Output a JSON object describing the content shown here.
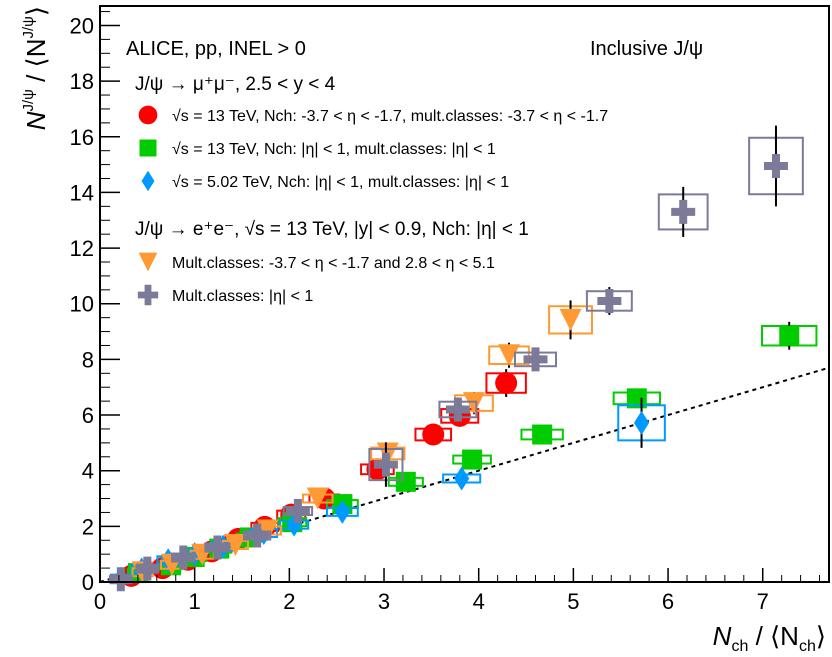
{
  "chart_data": {
    "type": "scatter",
    "xlim": [
      0,
      7.7
    ],
    "ylim": [
      0,
      20.7
    ],
    "xticks": [
      0,
      1,
      2,
      3,
      4,
      5,
      6,
      7
    ],
    "yticks": [
      0,
      2,
      4,
      6,
      8,
      10,
      12,
      14,
      16,
      18,
      20
    ],
    "xlabel": {
      "main": "N",
      "sub": "ch",
      "rest": " / ⟨N",
      "sub2": "ch",
      "close": "⟩"
    },
    "ylabel": {
      "main": "N",
      "sup": "J/ψ",
      "rest": " / ⟨N",
      "sup2": "J/ψ",
      "close": "⟩"
    },
    "header_left": "ALICE, pp, INEL > 0",
    "header_right": "Inclusive J/ψ",
    "group1_title": "J/ψ → μ⁺μ⁻, 2.5 < y < 4",
    "group2_title": "J/ψ → e⁺e⁻, √s = 13 TeV, |y| < 0.9, Nch: |η| < 1",
    "reference_line": {
      "slope": 1,
      "style": "dotted"
    },
    "series": [
      {
        "name": "√s = 13 TeV, Nch: -3.7 < η < -1.7, mult.classes: -3.7 < η < -1.7",
        "marker": "circle",
        "color": "#ff0000",
        "x": [
          0.33,
          0.66,
          0.93,
          1.18,
          1.46,
          1.74,
          2.02,
          2.37,
          2.93,
          3.52,
          3.8,
          4.29
        ],
        "y": [
          0.22,
          0.5,
          0.8,
          1.1,
          1.55,
          1.98,
          2.42,
          3.0,
          4.05,
          5.3,
          5.97,
          7.15
        ],
        "yerr": [
          0.05,
          0.05,
          0.05,
          0.06,
          0.08,
          0.1,
          0.1,
          0.15,
          0.25,
          0.3,
          0.35,
          0.5
        ],
        "syst_box": true
      },
      {
        "name": "√s = 13 TeV, Nch: |η| < 1, mult.classes: |η| < 1",
        "marker": "square",
        "color": "#00cc00",
        "x": [
          0.4,
          0.75,
          1.0,
          1.26,
          1.58,
          2.03,
          2.56,
          3.23,
          3.93,
          4.67,
          5.67,
          7.28
        ],
        "y": [
          0.32,
          0.6,
          0.9,
          1.2,
          1.6,
          2.15,
          2.8,
          3.6,
          4.4,
          5.3,
          6.6,
          8.85
        ],
        "yerr": [
          0.05,
          0.05,
          0.05,
          0.06,
          0.07,
          0.1,
          0.12,
          0.15,
          0.2,
          0.25,
          0.3,
          0.5
        ],
        "syst_box": true
      },
      {
        "name": "√s = 5.02 TeV, Nch: |η| < 1, mult.classes: |η| < 1",
        "marker": "diamond",
        "color": "#0099ff",
        "x": [
          0.22,
          0.44,
          0.72,
          1.0,
          1.3,
          1.73,
          2.05,
          2.56,
          3.82,
          5.72
        ],
        "y": [
          0.12,
          0.45,
          0.78,
          1.0,
          1.27,
          1.76,
          2.06,
          2.52,
          3.72,
          5.72
        ],
        "yerr": [
          0.05,
          0.05,
          0.05,
          0.06,
          0.08,
          0.1,
          0.12,
          0.15,
          0.2,
          0.9
        ],
        "syst_box": true
      },
      {
        "name": "Mult.classes: -3.7 < η < -1.7 and 2.8 < η < 5.1",
        "marker": "triangle-down",
        "color": "#ff9933",
        "x": [
          0.45,
          0.76,
          1.08,
          1.43,
          1.77,
          2.3,
          3.04,
          3.95,
          4.32,
          4.97
        ],
        "y": [
          0.35,
          0.62,
          0.98,
          1.33,
          1.85,
          3.0,
          4.62,
          6.43,
          8.15,
          9.42
        ],
        "yerr": [
          0.05,
          0.06,
          0.08,
          0.1,
          0.12,
          0.18,
          0.3,
          0.4,
          0.45,
          0.7
        ],
        "syst_box": true
      },
      {
        "name": "Mult.classes: |η| < 1",
        "marker": "cross",
        "color": "#7b7b99",
        "x": [
          0.22,
          0.5,
          0.88,
          1.24,
          1.66,
          2.09,
          3.02,
          3.78,
          4.6,
          5.38,
          6.16,
          7.14
        ],
        "y": [
          0.1,
          0.48,
          0.88,
          1.24,
          1.67,
          2.55,
          4.22,
          6.2,
          8.0,
          10.1,
          13.3,
          14.95
        ],
        "yerr": [
          0.05,
          0.06,
          0.08,
          0.1,
          0.14,
          0.2,
          0.8,
          0.4,
          0.35,
          0.5,
          0.9,
          1.45
        ],
        "syst_box": true
      }
    ],
    "legend_placement": "top-left, inside plot"
  }
}
